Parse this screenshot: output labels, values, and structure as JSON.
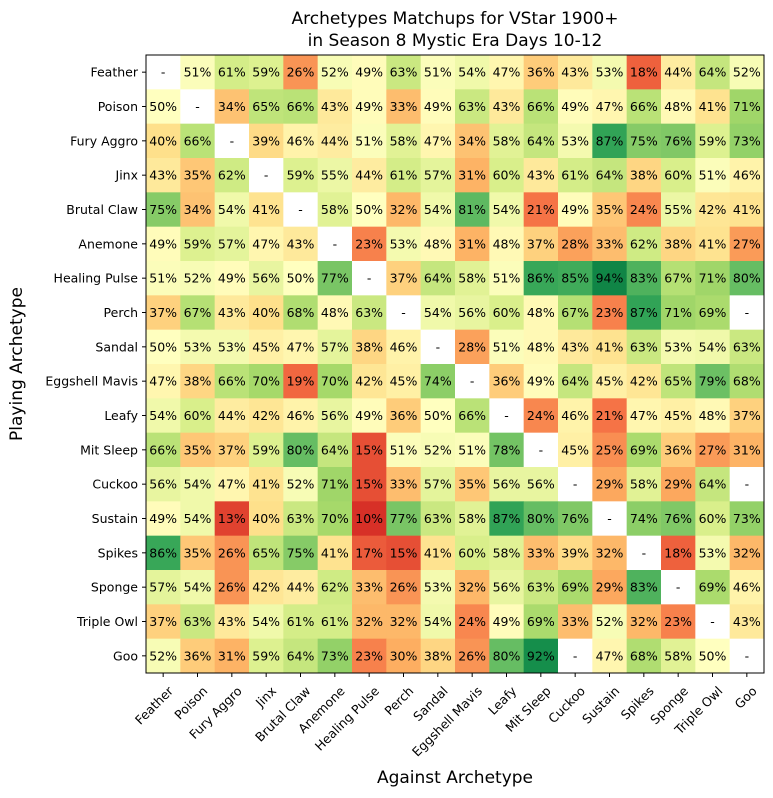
{
  "chart_data": {
    "type": "heatmap",
    "title": [
      "Archetypes Matchups for VStar 1900+",
      "in Season 8 Mystic Era Days 10-12"
    ],
    "xlabel": "Against Archetype",
    "ylabel": "Playing Archetype",
    "rows": [
      "Feather",
      "Poison",
      "Fury Aggro",
      "Jinx",
      "Brutal Claw",
      "Anemone",
      "Healing Pulse",
      "Perch",
      "Sandal",
      "Eggshell Mavis",
      "Leafy",
      "Mit Sleep",
      "Cuckoo",
      "Sustain",
      "Spikes",
      "Sponge",
      "Triple Owl",
      "Goo"
    ],
    "cols": [
      "Feather",
      "Poison",
      "Fury Aggro",
      "Jinx",
      "Brutal Claw",
      "Anemone",
      "Healing Pulse",
      "Perch",
      "Sandal",
      "Eggshell Mavis",
      "Leafy",
      "Mit Sleep",
      "Cuckoo",
      "Sustain",
      "Spikes",
      "Sponge",
      "Triple Owl",
      "Goo"
    ],
    "values": [
      [
        null,
        51,
        61,
        59,
        26,
        52,
        49,
        63,
        51,
        54,
        47,
        36,
        43,
        53,
        18,
        44,
        64,
        52
      ],
      [
        50,
        null,
        34,
        65,
        66,
        43,
        49,
        33,
        49,
        63,
        43,
        66,
        49,
        47,
        66,
        48,
        41,
        71
      ],
      [
        40,
        66,
        null,
        39,
        46,
        44,
        51,
        58,
        47,
        34,
        58,
        64,
        53,
        87,
        75,
        76,
        59,
        73
      ],
      [
        43,
        35,
        62,
        null,
        59,
        55,
        44,
        61,
        57,
        31,
        60,
        43,
        61,
        64,
        38,
        60,
        51,
        46
      ],
      [
        75,
        34,
        54,
        41,
        null,
        58,
        50,
        32,
        54,
        81,
        54,
        21,
        49,
        35,
        24,
        55,
        42,
        41
      ],
      [
        49,
        59,
        57,
        47,
        43,
        null,
        23,
        53,
        48,
        31,
        48,
        37,
        28,
        33,
        62,
        38,
        41,
        27
      ],
      [
        51,
        52,
        49,
        56,
        50,
        77,
        null,
        37,
        64,
        58,
        51,
        86,
        85,
        94,
        83,
        67,
        71,
        80
      ],
      [
        37,
        67,
        43,
        40,
        68,
        48,
        63,
        null,
        54,
        56,
        60,
        48,
        67,
        23,
        87,
        71,
        69,
        null
      ],
      [
        50,
        53,
        53,
        45,
        47,
        57,
        38,
        46,
        null,
        28,
        51,
        48,
        43,
        41,
        63,
        53,
        54,
        63
      ],
      [
        47,
        38,
        66,
        70,
        19,
        70,
        42,
        45,
        74,
        null,
        36,
        49,
        64,
        45,
        42,
        65,
        79,
        68
      ],
      [
        54,
        60,
        44,
        42,
        46,
        56,
        49,
        36,
        50,
        66,
        null,
        24,
        46,
        21,
        47,
        45,
        48,
        37
      ],
      [
        66,
        35,
        37,
        59,
        80,
        64,
        15,
        51,
        52,
        51,
        78,
        null,
        45,
        25,
        69,
        36,
        27,
        31
      ],
      [
        56,
        54,
        47,
        41,
        52,
        71,
        15,
        33,
        57,
        35,
        56,
        56,
        null,
        29,
        58,
        29,
        64,
        null
      ],
      [
        49,
        54,
        13,
        40,
        63,
        70,
        10,
        77,
        63,
        58,
        87,
        80,
        76,
        null,
        74,
        76,
        60,
        73
      ],
      [
        86,
        35,
        26,
        65,
        75,
        41,
        17,
        15,
        41,
        60,
        58,
        33,
        39,
        32,
        null,
        18,
        53,
        32
      ],
      [
        57,
        54,
        26,
        42,
        44,
        62,
        33,
        26,
        53,
        32,
        56,
        63,
        69,
        29,
        83,
        null,
        69,
        46
      ],
      [
        37,
        63,
        43,
        54,
        61,
        61,
        32,
        32,
        54,
        24,
        49,
        69,
        33,
        52,
        32,
        23,
        null,
        43
      ],
      [
        52,
        36,
        31,
        59,
        64,
        73,
        23,
        30,
        38,
        26,
        80,
        92,
        null,
        47,
        68,
        58,
        50,
        null
      ]
    ],
    "missing_label": "-",
    "colormap": "RdYlGn",
    "vmin": 0,
    "vmax": 100,
    "grid": false,
    "legend": "none"
  }
}
